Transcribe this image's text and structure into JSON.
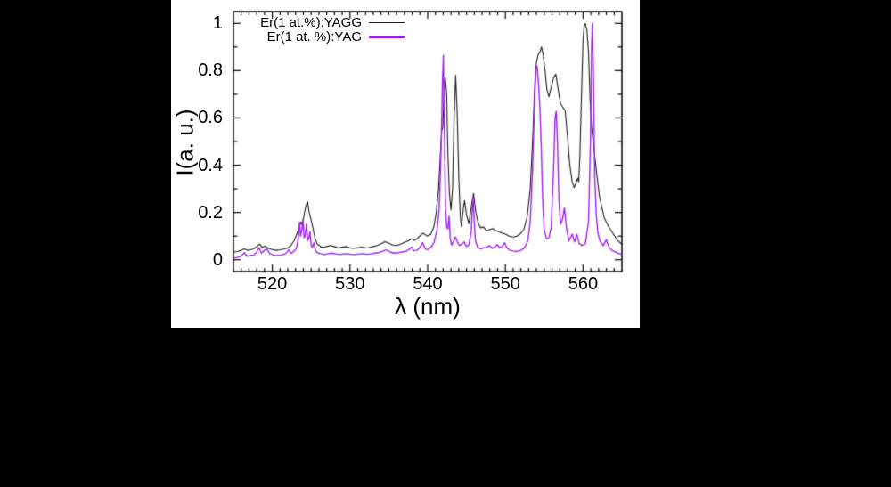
{
  "page": {
    "background": "#000000"
  },
  "figure": {
    "background": "#ffffff"
  },
  "chart_data": {
    "type": "line",
    "title": "",
    "xlabel": "λ (nm)",
    "ylabel": "I(a. u.)",
    "xlim": [
      515,
      565
    ],
    "ylim": [
      -0.05,
      1.05
    ],
    "grid": false,
    "legend_position": "top-left-inside",
    "tick_style": "inward-mirrored",
    "x_major_ticks": [
      520,
      530,
      540,
      550,
      560
    ],
    "x_minor_tick_step": 1,
    "y_major_ticks": [
      {
        "value": 0,
        "label": "0"
      },
      {
        "value": 0.2,
        "label": "0.2"
      },
      {
        "value": 0.4,
        "label": "0.4"
      },
      {
        "value": 0.6,
        "label": "0.6"
      },
      {
        "value": 0.8,
        "label": "0.8"
      },
      {
        "value": 1,
        "label": "1"
      }
    ],
    "y_minor_tick_step": 0.1,
    "series": [
      {
        "name": "Er(1 at.%):YAGG",
        "color": "#1a1a1a",
        "line_width": 1.1,
        "points": [
          [
            515,
            0.033
          ],
          [
            515.5,
            0.035
          ],
          [
            516,
            0.04
          ],
          [
            516.4,
            0.046
          ],
          [
            516.8,
            0.04
          ],
          [
            517.2,
            0.042
          ],
          [
            517.6,
            0.046
          ],
          [
            518,
            0.056
          ],
          [
            518.35,
            0.066
          ],
          [
            518.7,
            0.052
          ],
          [
            519.1,
            0.058
          ],
          [
            519.5,
            0.048
          ],
          [
            520,
            0.043
          ],
          [
            520.5,
            0.04
          ],
          [
            521,
            0.042
          ],
          [
            521.5,
            0.045
          ],
          [
            522,
            0.05
          ],
          [
            522.4,
            0.06
          ],
          [
            522.8,
            0.08
          ],
          [
            523.2,
            0.112
          ],
          [
            523.5,
            0.142
          ],
          [
            523.7,
            0.16
          ],
          [
            523.85,
            0.148
          ],
          [
            524.1,
            0.19
          ],
          [
            524.3,
            0.225
          ],
          [
            524.55,
            0.245
          ],
          [
            524.75,
            0.2
          ],
          [
            525,
            0.168
          ],
          [
            525.2,
            0.138
          ],
          [
            525.5,
            0.09
          ],
          [
            525.8,
            0.066
          ],
          [
            526.2,
            0.056
          ],
          [
            526.6,
            0.052
          ],
          [
            527,
            0.056
          ],
          [
            527.5,
            0.06
          ],
          [
            528,
            0.056
          ],
          [
            528.5,
            0.05
          ],
          [
            529,
            0.053
          ],
          [
            529.5,
            0.056
          ],
          [
            530,
            0.05
          ],
          [
            530.5,
            0.048
          ],
          [
            531,
            0.051
          ],
          [
            531.5,
            0.053
          ],
          [
            532,
            0.05
          ],
          [
            532.5,
            0.052
          ],
          [
            533,
            0.056
          ],
          [
            533.5,
            0.06
          ],
          [
            534,
            0.068
          ],
          [
            534.5,
            0.076
          ],
          [
            535,
            0.07
          ],
          [
            535.5,
            0.062
          ],
          [
            536,
            0.06
          ],
          [
            536.5,
            0.066
          ],
          [
            537,
            0.073
          ],
          [
            537.5,
            0.08
          ],
          [
            537.9,
            0.088
          ],
          [
            538.3,
            0.082
          ],
          [
            538.7,
            0.09
          ],
          [
            539.1,
            0.105
          ],
          [
            539.4,
            0.112
          ],
          [
            539.7,
            0.105
          ],
          [
            540,
            0.1
          ],
          [
            540.4,
            0.108
          ],
          [
            540.8,
            0.14
          ],
          [
            541.1,
            0.2
          ],
          [
            541.4,
            0.3
          ],
          [
            541.6,
            0.42
          ],
          [
            541.8,
            0.545
          ],
          [
            541.95,
            0.56
          ],
          [
            542.1,
            0.7
          ],
          [
            542.25,
            0.775
          ],
          [
            542.45,
            0.7
          ],
          [
            542.6,
            0.45
          ],
          [
            542.8,
            0.28
          ],
          [
            543,
            0.21
          ],
          [
            543.2,
            0.3
          ],
          [
            543.4,
            0.6
          ],
          [
            543.6,
            0.78
          ],
          [
            543.8,
            0.62
          ],
          [
            544,
            0.35
          ],
          [
            544.2,
            0.18
          ],
          [
            544.35,
            0.14
          ],
          [
            544.6,
            0.22
          ],
          [
            544.75,
            0.25
          ],
          [
            545,
            0.19
          ],
          [
            545.3,
            0.152
          ],
          [
            545.6,
            0.22
          ],
          [
            545.9,
            0.28
          ],
          [
            546.2,
            0.2
          ],
          [
            546.5,
            0.155
          ],
          [
            546.8,
            0.135
          ],
          [
            547.2,
            0.138
          ],
          [
            547.6,
            0.122
          ],
          [
            548,
            0.128
          ],
          [
            548.4,
            0.132
          ],
          [
            548.8,
            0.122
          ],
          [
            549.2,
            0.118
          ],
          [
            549.6,
            0.112
          ],
          [
            550,
            0.108
          ],
          [
            550.5,
            0.1
          ],
          [
            551,
            0.096
          ],
          [
            551.5,
            0.1
          ],
          [
            552,
            0.112
          ],
          [
            552.4,
            0.13
          ],
          [
            552.8,
            0.18
          ],
          [
            553.2,
            0.3
          ],
          [
            553.5,
            0.5
          ],
          [
            553.8,
            0.75
          ],
          [
            554,
            0.835
          ],
          [
            554.2,
            0.865
          ],
          [
            554.45,
            0.88
          ],
          [
            554.65,
            0.9
          ],
          [
            554.85,
            0.87
          ],
          [
            555.1,
            0.8
          ],
          [
            555.35,
            0.72
          ],
          [
            555.6,
            0.69
          ],
          [
            555.9,
            0.73
          ],
          [
            556.2,
            0.77
          ],
          [
            556.5,
            0.785
          ],
          [
            556.8,
            0.72
          ],
          [
            557.1,
            0.66
          ],
          [
            557.4,
            0.645
          ],
          [
            557.7,
            0.63
          ],
          [
            558,
            0.52
          ],
          [
            558.3,
            0.4
          ],
          [
            558.6,
            0.33
          ],
          [
            558.85,
            0.305
          ],
          [
            559.1,
            0.325
          ],
          [
            559.3,
            0.345
          ],
          [
            559.45,
            0.33
          ],
          [
            559.6,
            0.45
          ],
          [
            559.8,
            0.7
          ],
          [
            560,
            0.93
          ],
          [
            560.15,
            0.99
          ],
          [
            560.3,
            1.0
          ],
          [
            560.5,
            0.97
          ],
          [
            560.7,
            0.88
          ],
          [
            560.9,
            0.68
          ],
          [
            561.1,
            0.56
          ],
          [
            561.3,
            0.5
          ],
          [
            561.7,
            0.38
          ],
          [
            562.1,
            0.27
          ],
          [
            562.7,
            0.18
          ],
          [
            563.2,
            0.145
          ],
          [
            563.8,
            0.114
          ],
          [
            564.4,
            0.083
          ],
          [
            565,
            0.065
          ]
        ]
      },
      {
        "name": "Er(1 at. %):YAG",
        "color": "#a020f0",
        "line_width": 1.4,
        "points": [
          [
            515,
            0.008
          ],
          [
            515.5,
            0.01
          ],
          [
            516,
            0.016
          ],
          [
            516.4,
            0.03
          ],
          [
            516.8,
            0.015
          ],
          [
            517.2,
            0.018
          ],
          [
            517.6,
            0.02
          ],
          [
            518,
            0.032
          ],
          [
            518.3,
            0.052
          ],
          [
            518.6,
            0.028
          ],
          [
            519,
            0.04
          ],
          [
            519.3,
            0.046
          ],
          [
            519.7,
            0.025
          ],
          [
            520.2,
            0.02
          ],
          [
            520.7,
            0.018
          ],
          [
            521.2,
            0.02
          ],
          [
            521.7,
            0.026
          ],
          [
            522.1,
            0.042
          ],
          [
            522.4,
            0.028
          ],
          [
            522.8,
            0.036
          ],
          [
            523.1,
            0.048
          ],
          [
            523.35,
            0.09
          ],
          [
            523.5,
            0.158
          ],
          [
            523.65,
            0.1
          ],
          [
            523.8,
            0.125
          ],
          [
            523.95,
            0.168
          ],
          [
            524.1,
            0.092
          ],
          [
            524.25,
            0.105
          ],
          [
            524.4,
            0.152
          ],
          [
            524.55,
            0.082
          ],
          [
            524.7,
            0.088
          ],
          [
            524.85,
            0.118
          ],
          [
            525,
            0.062
          ],
          [
            525.15,
            0.052
          ],
          [
            525.35,
            0.072
          ],
          [
            525.55,
            0.04
          ],
          [
            525.8,
            0.03
          ],
          [
            526.2,
            0.026
          ],
          [
            526.7,
            0.022
          ],
          [
            527.2,
            0.026
          ],
          [
            527.7,
            0.028
          ],
          [
            528.2,
            0.025
          ],
          [
            528.7,
            0.022
          ],
          [
            529.2,
            0.025
          ],
          [
            529.7,
            0.026
          ],
          [
            530.2,
            0.022
          ],
          [
            530.7,
            0.022
          ],
          [
            531.2,
            0.025
          ],
          [
            531.7,
            0.026
          ],
          [
            532.2,
            0.023
          ],
          [
            532.7,
            0.025
          ],
          [
            533.2,
            0.028
          ],
          [
            533.7,
            0.03
          ],
          [
            534.2,
            0.036
          ],
          [
            534.7,
            0.042
          ],
          [
            535.2,
            0.032
          ],
          [
            535.7,
            0.028
          ],
          [
            536.2,
            0.03
          ],
          [
            536.7,
            0.033
          ],
          [
            537.2,
            0.036
          ],
          [
            537.6,
            0.044
          ],
          [
            537.9,
            0.054
          ],
          [
            538.2,
            0.038
          ],
          [
            538.6,
            0.04
          ],
          [
            539,
            0.052
          ],
          [
            539.35,
            0.072
          ],
          [
            539.7,
            0.046
          ],
          [
            540,
            0.043
          ],
          [
            540.4,
            0.052
          ],
          [
            540.8,
            0.072
          ],
          [
            541.2,
            0.125
          ],
          [
            541.5,
            0.22
          ],
          [
            541.75,
            0.5
          ],
          [
            541.9,
            0.75
          ],
          [
            542.02,
            0.865
          ],
          [
            542.15,
            0.55
          ],
          [
            542.3,
            0.215
          ],
          [
            542.45,
            0.14
          ],
          [
            542.6,
            0.13
          ],
          [
            542.75,
            0.185
          ],
          [
            542.9,
            0.09
          ],
          [
            543.1,
            0.062
          ],
          [
            543.4,
            0.082
          ],
          [
            543.6,
            0.096
          ],
          [
            543.8,
            0.076
          ],
          [
            544.1,
            0.06
          ],
          [
            544.4,
            0.066
          ],
          [
            544.7,
            0.075
          ],
          [
            545,
            0.056
          ],
          [
            545.3,
            0.062
          ],
          [
            545.6,
            0.115
          ],
          [
            545.82,
            0.268
          ],
          [
            545.98,
            0.17
          ],
          [
            546.15,
            0.08
          ],
          [
            546.45,
            0.052
          ],
          [
            546.8,
            0.046
          ],
          [
            547.2,
            0.05
          ],
          [
            547.6,
            0.053
          ],
          [
            547.95,
            0.06
          ],
          [
            548.3,
            0.048
          ],
          [
            548.7,
            0.055
          ],
          [
            548.95,
            0.064
          ],
          [
            549.3,
            0.05
          ],
          [
            549.6,
            0.056
          ],
          [
            549.9,
            0.072
          ],
          [
            550.2,
            0.05
          ],
          [
            550.6,
            0.04
          ],
          [
            551,
            0.037
          ],
          [
            551.5,
            0.035
          ],
          [
            552,
            0.04
          ],
          [
            552.5,
            0.052
          ],
          [
            552.9,
            0.082
          ],
          [
            553.2,
            0.16
          ],
          [
            553.5,
            0.38
          ],
          [
            553.75,
            0.66
          ],
          [
            553.95,
            0.81
          ],
          [
            554.1,
            0.818
          ],
          [
            554.3,
            0.73
          ],
          [
            554.45,
            0.635
          ],
          [
            554.6,
            0.5
          ],
          [
            554.8,
            0.25
          ],
          [
            555,
            0.125
          ],
          [
            555.3,
            0.088
          ],
          [
            555.6,
            0.092
          ],
          [
            555.9,
            0.14
          ],
          [
            556.2,
            0.38
          ],
          [
            556.4,
            0.6
          ],
          [
            556.55,
            0.628
          ],
          [
            556.7,
            0.5
          ],
          [
            556.9,
            0.25
          ],
          [
            557.1,
            0.15
          ],
          [
            557.35,
            0.17
          ],
          [
            557.6,
            0.22
          ],
          [
            557.9,
            0.125
          ],
          [
            558.2,
            0.08
          ],
          [
            558.6,
            0.108
          ],
          [
            558.9,
            0.075
          ],
          [
            559.2,
            0.108
          ],
          [
            559.5,
            0.068
          ],
          [
            559.9,
            0.06
          ],
          [
            560.3,
            0.068
          ],
          [
            560.7,
            0.16
          ],
          [
            560.95,
            0.5
          ],
          [
            561.1,
            0.9
          ],
          [
            561.2,
            1.0
          ],
          [
            561.35,
            0.75
          ],
          [
            561.5,
            0.35
          ],
          [
            561.7,
            0.19
          ],
          [
            561.9,
            0.115
          ],
          [
            562.2,
            0.078
          ],
          [
            562.6,
            0.06
          ],
          [
            563,
            0.085
          ],
          [
            563.3,
            0.055
          ],
          [
            563.7,
            0.04
          ],
          [
            564.2,
            0.032
          ],
          [
            564.6,
            0.027
          ],
          [
            565,
            0.022
          ]
        ]
      }
    ]
  }
}
